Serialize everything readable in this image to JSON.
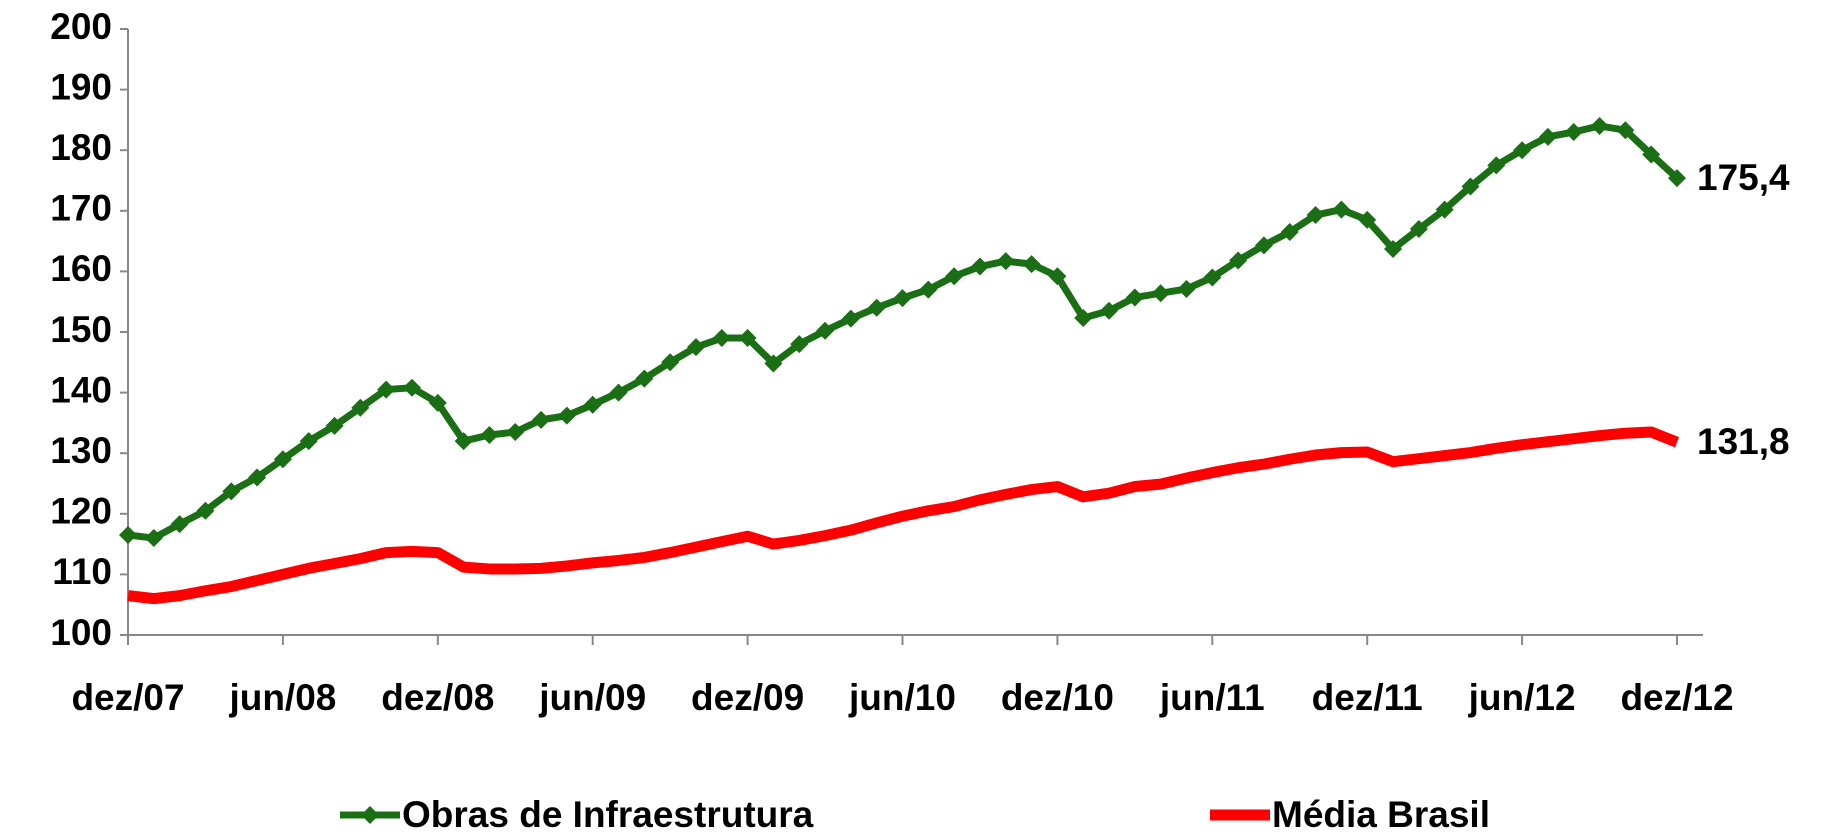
{
  "chart_data": {
    "type": "line",
    "categories": [
      "dez/07",
      null,
      null,
      null,
      null,
      null,
      "jun/08",
      null,
      null,
      null,
      null,
      null,
      "dez/08",
      null,
      null,
      null,
      null,
      null,
      "jun/09",
      null,
      null,
      null,
      null,
      null,
      "dez/09",
      null,
      null,
      null,
      null,
      null,
      "jun/10",
      null,
      null,
      null,
      null,
      null,
      "dez/10",
      null,
      null,
      null,
      null,
      null,
      "jun/11",
      null,
      null,
      null,
      null,
      null,
      "dez/11",
      null,
      null,
      null,
      null,
      null,
      "jun/12",
      null,
      null,
      null,
      null,
      null,
      "dez/12"
    ],
    "series": [
      {
        "name": "Obras de Infraestrutura",
        "color": "#1a6e14",
        "marker": "diamond",
        "values": [
          116.5,
          116,
          118.3,
          120.5,
          123.7,
          126,
          129,
          132,
          134.5,
          137.5,
          140.5,
          140.8,
          138.3,
          132,
          133,
          133.5,
          135.5,
          136.2,
          138,
          140,
          142.3,
          145,
          147.5,
          149,
          149,
          144.8,
          148,
          150.2,
          152.2,
          154,
          155.6,
          157,
          159.2,
          160.8,
          161.7,
          161.2,
          159.2,
          152.3,
          153.5,
          155.7,
          156.4,
          157.1,
          159,
          161.8,
          164.3,
          166.5,
          169.3,
          170.2,
          168.5,
          163.7,
          167,
          170.2,
          174,
          177.5,
          180,
          182.2,
          183,
          184,
          183.3,
          179.3,
          175.4
        ],
        "value_labels": [
          null,
          null,
          null,
          null,
          null,
          null,
          null,
          null,
          null,
          null,
          null,
          null,
          null,
          null,
          null,
          null,
          null,
          null,
          null,
          null,
          null,
          null,
          null,
          null,
          null,
          null,
          null,
          null,
          null,
          null,
          null,
          null,
          null,
          null,
          null,
          null,
          null,
          null,
          null,
          null,
          null,
          null,
          null,
          null,
          null,
          null,
          null,
          null,
          null,
          null,
          null,
          null,
          null,
          null,
          null,
          null,
          null,
          null,
          null,
          null,
          "175,4"
        ]
      },
      {
        "name": "Média Brasil",
        "color": "#ff0000",
        "marker": "none",
        "values": [
          106.5,
          106,
          106.5,
          107.3,
          108,
          109,
          110,
          111,
          111.8,
          112.6,
          113.6,
          113.8,
          113.6,
          111.2,
          110.9,
          110.9,
          111,
          111.4,
          111.9,
          112.3,
          112.8,
          113.6,
          114.5,
          115.4,
          116.3,
          115,
          115.6,
          116.4,
          117.3,
          118.5,
          119.6,
          120.5,
          121.2,
          122.3,
          123.2,
          124,
          124.5,
          122.8,
          123.4,
          124.5,
          124.9,
          125.9,
          126.8,
          127.6,
          128.2,
          129,
          129.7,
          130.1,
          130.2,
          128.6,
          129.1,
          129.6,
          130.1,
          130.8,
          131.4,
          131.9,
          132.4,
          132.9,
          133.3,
          133.5,
          131.8
        ],
        "value_labels": [
          null,
          null,
          null,
          null,
          null,
          null,
          null,
          null,
          null,
          null,
          null,
          null,
          null,
          null,
          null,
          null,
          null,
          null,
          null,
          null,
          null,
          null,
          null,
          null,
          null,
          null,
          null,
          null,
          null,
          null,
          null,
          null,
          null,
          null,
          null,
          null,
          null,
          null,
          null,
          null,
          null,
          null,
          null,
          null,
          null,
          null,
          null,
          null,
          null,
          null,
          null,
          null,
          null,
          null,
          null,
          null,
          null,
          null,
          null,
          null,
          "131,8"
        ]
      }
    ],
    "ylim": [
      100,
      200
    ],
    "yticks": [
      100,
      110,
      120,
      130,
      140,
      150,
      160,
      170,
      180,
      190,
      200
    ],
    "grid": false,
    "legend": "bottom"
  }
}
